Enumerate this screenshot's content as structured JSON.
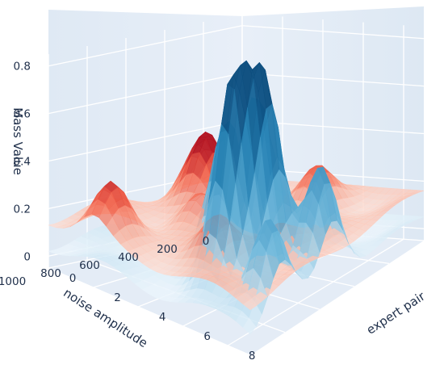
{
  "chart_data": {
    "type": "surface3d",
    "title": "",
    "zlabel": "Mass Value",
    "xlabel": "noise amplitude",
    "ylabel": "expert pair",
    "zlim": [
      -0.05,
      0.85
    ],
    "xlim": [
      0,
      1000
    ],
    "ylim": [
      0,
      9
    ],
    "grid": true,
    "legend": "none",
    "z_ticks": [
      {
        "value": 0,
        "label": "0"
      },
      {
        "value": 0.2,
        "label": "0.2"
      },
      {
        "value": 0.4,
        "label": "0.4"
      },
      {
        "value": 0.6,
        "label": "0.6"
      },
      {
        "value": 0.8,
        "label": "0.8"
      }
    ],
    "x_ticks": [
      {
        "value": 0,
        "label": "0"
      },
      {
        "value": 200,
        "label": "200"
      },
      {
        "value": 400,
        "label": "400"
      },
      {
        "value": 600,
        "label": "600"
      },
      {
        "value": 800,
        "label": "800"
      },
      {
        "value": 1000,
        "label": "1000"
      }
    ],
    "y_ticks": [
      {
        "value": 0,
        "label": "0"
      },
      {
        "value": 2,
        "label": "2"
      },
      {
        "value": 4,
        "label": "4"
      },
      {
        "value": 6,
        "label": "6"
      },
      {
        "value": 8,
        "label": "8"
      }
    ],
    "series": [
      {
        "colorscale": [
          "#eaf4fb",
          "#6bb6da",
          "#2a86b8",
          "#0b4d7e"
        ],
        "peaks": [
          {
            "x": 760,
            "y": 6.2,
            "z": 0.83
          },
          {
            "x": 640,
            "y": 6.8,
            "z": 0.84
          },
          {
            "x": 560,
            "y": 4.4,
            "z": 0.62
          },
          {
            "x": 330,
            "y": 3.7,
            "z": 0.64
          },
          {
            "x": 520,
            "y": 8.4,
            "z": 0.5
          },
          {
            "x": 820,
            "y": 8.4,
            "z": 0.42
          }
        ],
        "base": 0.05
      },
      {
        "colorscale": [
          "#fff3ee",
          "#fbb09a",
          "#ef5a44",
          "#b10f1e"
        ],
        "peaks": [
          {
            "x": 420,
            "y": 2.2,
            "z": 0.41
          },
          {
            "x": 360,
            "y": 1.2,
            "z": 0.34
          },
          {
            "x": 780,
            "y": 5.8,
            "z": 0.32
          },
          {
            "x": 900,
            "y": 2.0,
            "z": 0.36
          },
          {
            "x": 200,
            "y": 5.5,
            "z": 0.3
          },
          {
            "x": 620,
            "y": 7.2,
            "z": 0.28
          },
          {
            "x": 600,
            "y": 3.4,
            "z": 0.29
          }
        ],
        "base": 0.16
      }
    ]
  }
}
